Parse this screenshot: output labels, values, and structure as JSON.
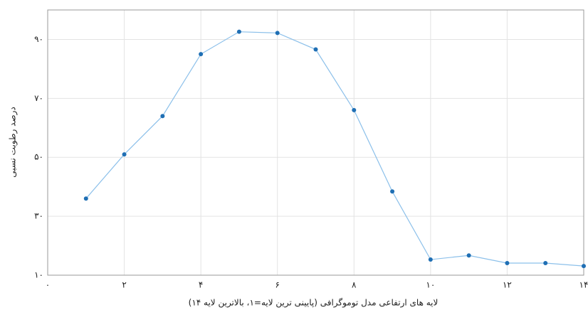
{
  "chart_data": {
    "type": "line",
    "xlabel": "لایه های ارتفاعی مدل توموگرافی (پایینی ترین لایه=۱، بالاترین لایه ۱۴)",
    "ylabel": "درصد رطوبت نسبی",
    "x": [
      1,
      2,
      3,
      4,
      5,
      6,
      7,
      8,
      9,
      10,
      11,
      12,
      13,
      14
    ],
    "series": [
      {
        "name": "",
        "color": "#1f6fb4",
        "values": [
          36,
          51,
          64,
          85,
          92.6,
          92.2,
          86.6,
          66,
          38.4,
          15.3,
          16.7,
          14.1,
          14.1,
          13.1
        ]
      }
    ],
    "xlim": [
      0,
      14
    ],
    "xticks": [
      {
        "value": 0,
        "label": "۰"
      },
      {
        "value": 2,
        "label": "۲"
      },
      {
        "value": 4,
        "label": "۴"
      },
      {
        "value": 6,
        "label": "۶"
      },
      {
        "value": 8,
        "label": "۸"
      },
      {
        "value": 10,
        "label": "۱۰"
      },
      {
        "value": 12,
        "label": "۱۲"
      },
      {
        "value": 14,
        "label": "۱۴"
      }
    ],
    "ylim": [
      10,
      100
    ],
    "yticks": [
      {
        "value": 10,
        "label": "۱۰"
      },
      {
        "value": 30,
        "label": "۳۰"
      },
      {
        "value": 50,
        "label": "۵۰"
      },
      {
        "value": 70,
        "label": "۷۰"
      },
      {
        "value": 90,
        "label": "۹۰"
      }
    ],
    "grid": true
  }
}
